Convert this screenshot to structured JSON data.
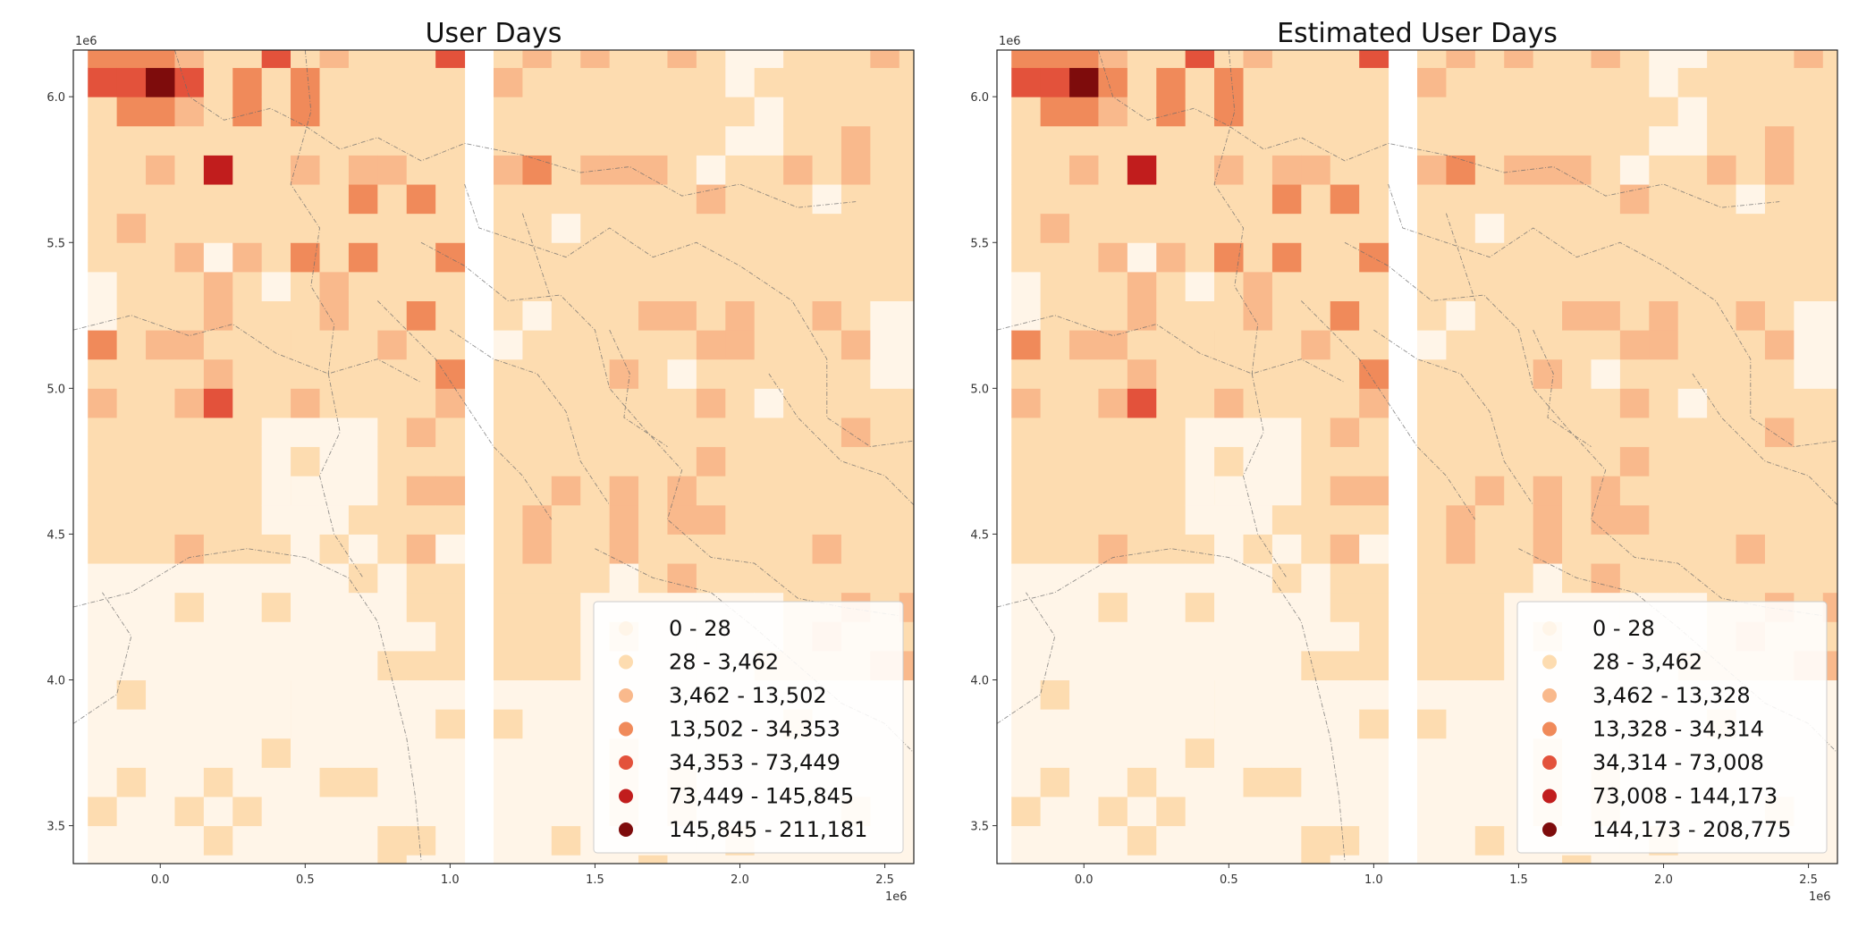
{
  "figure": {
    "x_offset_label": "1e6",
    "y_offset_label": "1e6",
    "panels": [
      "User Days",
      "Estimated User Days"
    ]
  },
  "chart_data": [
    {
      "type": "heatmap",
      "title": "User Days",
      "xlabel": "",
      "ylabel": "",
      "x_scale": "1e6",
      "y_scale": "1e6",
      "xlim": [
        -0.3,
        2.6
      ],
      "ylim": [
        3.37,
        6.16
      ],
      "x_ticks": [
        "0.0",
        "0.5",
        "1.0",
        "1.5",
        "2.0",
        "2.5"
      ],
      "y_ticks": [
        "3.5",
        "4.0",
        "4.5",
        "5.0",
        "5.5",
        "6.0"
      ],
      "cell_size": 0.1,
      "legend_position": "lower-right",
      "legend": [
        {
          "label": "0 - 28",
          "color": "#fff5e8"
        },
        {
          "label": "28 - 3,462",
          "color": "#fddcb0"
        },
        {
          "label": "3,462 - 13,502",
          "color": "#f9b98c"
        },
        {
          "label": "13,502 - 34,353",
          "color": "#f08a5a"
        },
        {
          "label": "34,353 - 73,449",
          "color": "#e3523b"
        },
        {
          "label": "73,449 - 145,845",
          "color": "#c11d1d"
        },
        {
          "label": "145,845 - 211,181",
          "color": "#7e0c0c"
        }
      ],
      "highlight_cells": [
        {
          "x": 0.0,
          "y": 6.05,
          "class": 6
        },
        {
          "x": 0.2,
          "y": 5.75,
          "class": 5
        },
        {
          "x": 0.2,
          "y": 4.95,
          "class": 4
        },
        {
          "x": -0.2,
          "y": 6.05,
          "class": 4
        },
        {
          "x": -0.1,
          "y": 6.05,
          "class": 4
        },
        {
          "x": 0.1,
          "y": 6.05,
          "class": 4
        },
        {
          "x": 1.0,
          "y": 6.15,
          "class": 4
        },
        {
          "x": 0.4,
          "y": 6.15,
          "class": 4
        },
        {
          "x": -0.2,
          "y": 6.15,
          "class": 3
        },
        {
          "x": -0.1,
          "y": 6.15,
          "class": 3
        },
        {
          "x": 0.0,
          "y": 6.15,
          "class": 3
        },
        {
          "x": 0.3,
          "y": 6.05,
          "class": 3
        },
        {
          "x": 0.5,
          "y": 6.05,
          "class": 3
        },
        {
          "x": -0.1,
          "y": 5.95,
          "class": 3
        },
        {
          "x": 0.0,
          "y": 5.95,
          "class": 3
        },
        {
          "x": 0.3,
          "y": 5.95,
          "class": 3
        },
        {
          "x": 0.5,
          "y": 5.95,
          "class": 3
        },
        {
          "x": 1.3,
          "y": 5.75,
          "class": 3
        },
        {
          "x": 0.7,
          "y": 5.65,
          "class": 3
        },
        {
          "x": 0.9,
          "y": 5.65,
          "class": 3
        },
        {
          "x": 0.5,
          "y": 5.45,
          "class": 3
        },
        {
          "x": 0.7,
          "y": 5.45,
          "class": 3
        },
        {
          "x": 1.0,
          "y": 5.45,
          "class": 3
        },
        {
          "x": 0.9,
          "y": 5.25,
          "class": 3
        },
        {
          "x": -0.2,
          "y": 5.15,
          "class": 3
        },
        {
          "x": 1.0,
          "y": 5.05,
          "class": 3
        }
      ]
    },
    {
      "type": "heatmap",
      "title": "Estimated User Days",
      "xlabel": "",
      "ylabel": "",
      "x_scale": "1e6",
      "y_scale": "1e6",
      "xlim": [
        -0.3,
        2.6
      ],
      "ylim": [
        3.37,
        6.16
      ],
      "x_ticks": [
        "0.0",
        "0.5",
        "1.0",
        "1.5",
        "2.0",
        "2.5"
      ],
      "y_ticks": [
        "3.5",
        "4.0",
        "4.5",
        "5.0",
        "5.5",
        "6.0"
      ],
      "cell_size": 0.1,
      "legend_position": "lower-right",
      "legend": [
        {
          "label": "0 - 28",
          "color": "#fff5e8"
        },
        {
          "label": "28 - 3,462",
          "color": "#fddcb0"
        },
        {
          "label": "3,462 - 13,328",
          "color": "#f9b98c"
        },
        {
          "label": "13,328 - 34,314",
          "color": "#f08a5a"
        },
        {
          "label": "34,314 - 73,008",
          "color": "#e3523b"
        },
        {
          "label": "73,008 - 144,173",
          "color": "#c11d1d"
        },
        {
          "label": "144,173 - 208,775",
          "color": "#7e0c0c"
        }
      ],
      "highlight_cells": [
        {
          "x": 0.0,
          "y": 6.05,
          "class": 6
        },
        {
          "x": 0.2,
          "y": 5.75,
          "class": 5
        },
        {
          "x": 0.2,
          "y": 4.95,
          "class": 4
        },
        {
          "x": -0.2,
          "y": 6.05,
          "class": 4
        },
        {
          "x": -0.1,
          "y": 6.05,
          "class": 4
        },
        {
          "x": 0.1,
          "y": 6.05,
          "class": 3
        },
        {
          "x": 1.0,
          "y": 6.15,
          "class": 4
        },
        {
          "x": 0.4,
          "y": 6.15,
          "class": 4
        },
        {
          "x": -0.2,
          "y": 6.15,
          "class": 3
        },
        {
          "x": -0.1,
          "y": 6.15,
          "class": 3
        },
        {
          "x": 0.0,
          "y": 6.15,
          "class": 3
        },
        {
          "x": 0.3,
          "y": 6.05,
          "class": 3
        },
        {
          "x": 0.5,
          "y": 6.05,
          "class": 3
        },
        {
          "x": -0.1,
          "y": 5.95,
          "class": 3
        },
        {
          "x": 0.0,
          "y": 5.95,
          "class": 3
        },
        {
          "x": 0.3,
          "y": 5.95,
          "class": 3
        },
        {
          "x": 0.5,
          "y": 5.95,
          "class": 3
        },
        {
          "x": 1.3,
          "y": 5.75,
          "class": 3
        },
        {
          "x": 0.7,
          "y": 5.65,
          "class": 3
        },
        {
          "x": 0.9,
          "y": 5.65,
          "class": 3
        },
        {
          "x": 0.5,
          "y": 5.45,
          "class": 3
        },
        {
          "x": 0.7,
          "y": 5.45,
          "class": 3
        },
        {
          "x": 1.0,
          "y": 5.45,
          "class": 3
        },
        {
          "x": 0.9,
          "y": 5.25,
          "class": 3
        },
        {
          "x": -0.2,
          "y": 5.15,
          "class": 3
        },
        {
          "x": 1.0,
          "y": 5.05,
          "class": 3
        }
      ]
    }
  ]
}
